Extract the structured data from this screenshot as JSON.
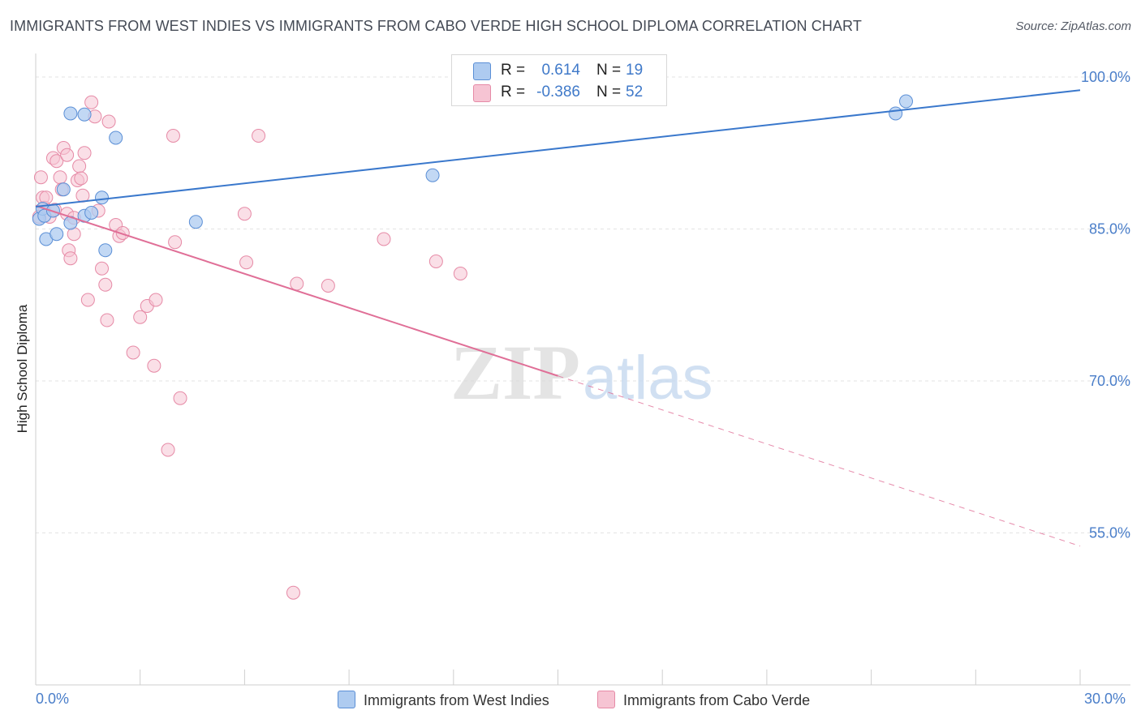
{
  "header": {
    "title": "IMMIGRANTS FROM WEST INDIES VS IMMIGRANTS FROM CABO VERDE HIGH SCHOOL DIPLOMA CORRELATION CHART",
    "source": "Source: ZipAtlas.com"
  },
  "watermark": {
    "zip": "ZIP",
    "atlas": "atlas"
  },
  "legend": {
    "r_label": "R =",
    "n_label": "N =",
    "rows": [
      {
        "r": "0.614",
        "n": "19"
      },
      {
        "r": "-0.386",
        "n": "52"
      }
    ]
  },
  "colors": {
    "blue_fill": "#aecbf0",
    "blue_stroke": "#5b8fd6",
    "blue_line": "#3a78cc",
    "pink_fill": "#f6c4d3",
    "pink_stroke": "#e68aa6",
    "pink_line": "#e06f97",
    "axis_text": "#4a7ec9",
    "grid": "#e3e3e3"
  },
  "chart_data": {
    "type": "scatter",
    "title": "IMMIGRANTS FROM WEST INDIES VS IMMIGRANTS FROM CABO VERDE HIGH SCHOOL DIPLOMA CORRELATION CHART",
    "xlabel": "",
    "ylabel": "High School Diploma",
    "xlim": [
      0,
      30
    ],
    "ylim": [
      40,
      102
    ],
    "x_tick_labels": [
      "0.0%",
      "30.0%"
    ],
    "y_ticks": [
      100,
      85,
      70,
      55
    ],
    "y_tick_labels": [
      "100.0%",
      "85.0%",
      "70.0%",
      "55.0%"
    ],
    "grid": true,
    "legend_placement": "top-center",
    "series": [
      {
        "name": "Immigrants from West Indies",
        "color": "#5b8fd6",
        "R": 0.614,
        "N": 19,
        "points": [
          [
            0.1,
            86.0
          ],
          [
            0.2,
            87.0
          ],
          [
            0.25,
            86.3
          ],
          [
            0.3,
            84.0
          ],
          [
            0.5,
            86.8
          ],
          [
            0.6,
            84.5
          ],
          [
            0.8,
            88.9
          ],
          [
            1.0,
            85.6
          ],
          [
            1.0,
            96.4
          ],
          [
            1.4,
            86.3
          ],
          [
            1.4,
            96.3
          ],
          [
            1.6,
            86.6
          ],
          [
            1.9,
            88.1
          ],
          [
            2.0,
            82.9
          ],
          [
            2.3,
            94.0
          ],
          [
            4.6,
            85.7
          ],
          [
            11.4,
            90.3
          ],
          [
            24.7,
            96.4
          ],
          [
            25.0,
            97.6
          ]
        ],
        "trend": {
          "x0": 0.0,
          "y0": 87.2,
          "x1": 30.0,
          "y1": 98.7
        }
      },
      {
        "name": "Immigrants from Cabo Verde",
        "color": "#e68aa6",
        "R": -0.386,
        "N": 52,
        "points": [
          [
            0.1,
            86.2
          ],
          [
            0.15,
            90.1
          ],
          [
            0.2,
            88.1
          ],
          [
            0.25,
            87.1
          ],
          [
            0.3,
            88.1
          ],
          [
            0.4,
            86.2
          ],
          [
            0.5,
            92.0
          ],
          [
            0.55,
            86.9
          ],
          [
            0.6,
            91.7
          ],
          [
            0.7,
            90.1
          ],
          [
            0.75,
            88.9
          ],
          [
            0.8,
            93.0
          ],
          [
            0.9,
            86.5
          ],
          [
            0.9,
            92.3
          ],
          [
            0.95,
            82.9
          ],
          [
            1.0,
            82.1
          ],
          [
            1.1,
            86.1
          ],
          [
            1.1,
            84.5
          ],
          [
            1.2,
            89.8
          ],
          [
            1.25,
            91.2
          ],
          [
            1.3,
            90.0
          ],
          [
            1.35,
            88.3
          ],
          [
            1.4,
            92.5
          ],
          [
            1.5,
            78.0
          ],
          [
            1.6,
            97.5
          ],
          [
            1.7,
            96.1
          ],
          [
            1.8,
            86.8
          ],
          [
            1.9,
            81.1
          ],
          [
            2.0,
            79.5
          ],
          [
            2.05,
            76.0
          ],
          [
            2.1,
            95.6
          ],
          [
            2.3,
            85.4
          ],
          [
            2.4,
            84.3
          ],
          [
            2.5,
            84.6
          ],
          [
            2.8,
            72.8
          ],
          [
            3.0,
            76.3
          ],
          [
            3.2,
            77.4
          ],
          [
            3.4,
            71.5
          ],
          [
            3.45,
            78.0
          ],
          [
            3.8,
            63.2
          ],
          [
            3.95,
            94.2
          ],
          [
            4.0,
            83.7
          ],
          [
            4.15,
            68.3
          ],
          [
            6.0,
            86.5
          ],
          [
            6.05,
            81.7
          ],
          [
            6.4,
            94.2
          ],
          [
            7.4,
            49.1
          ],
          [
            7.5,
            79.6
          ],
          [
            8.4,
            79.4
          ],
          [
            10.0,
            84.0
          ],
          [
            11.5,
            81.8
          ],
          [
            12.2,
            80.6
          ]
        ],
        "trend": {
          "x0": 0.0,
          "y0": 87.3,
          "x1": 15.0,
          "y1": 70.5
        },
        "trend_dashed": {
          "x0": 15.0,
          "y0": 70.5,
          "x1": 30.0,
          "y1": 53.7
        }
      }
    ]
  }
}
